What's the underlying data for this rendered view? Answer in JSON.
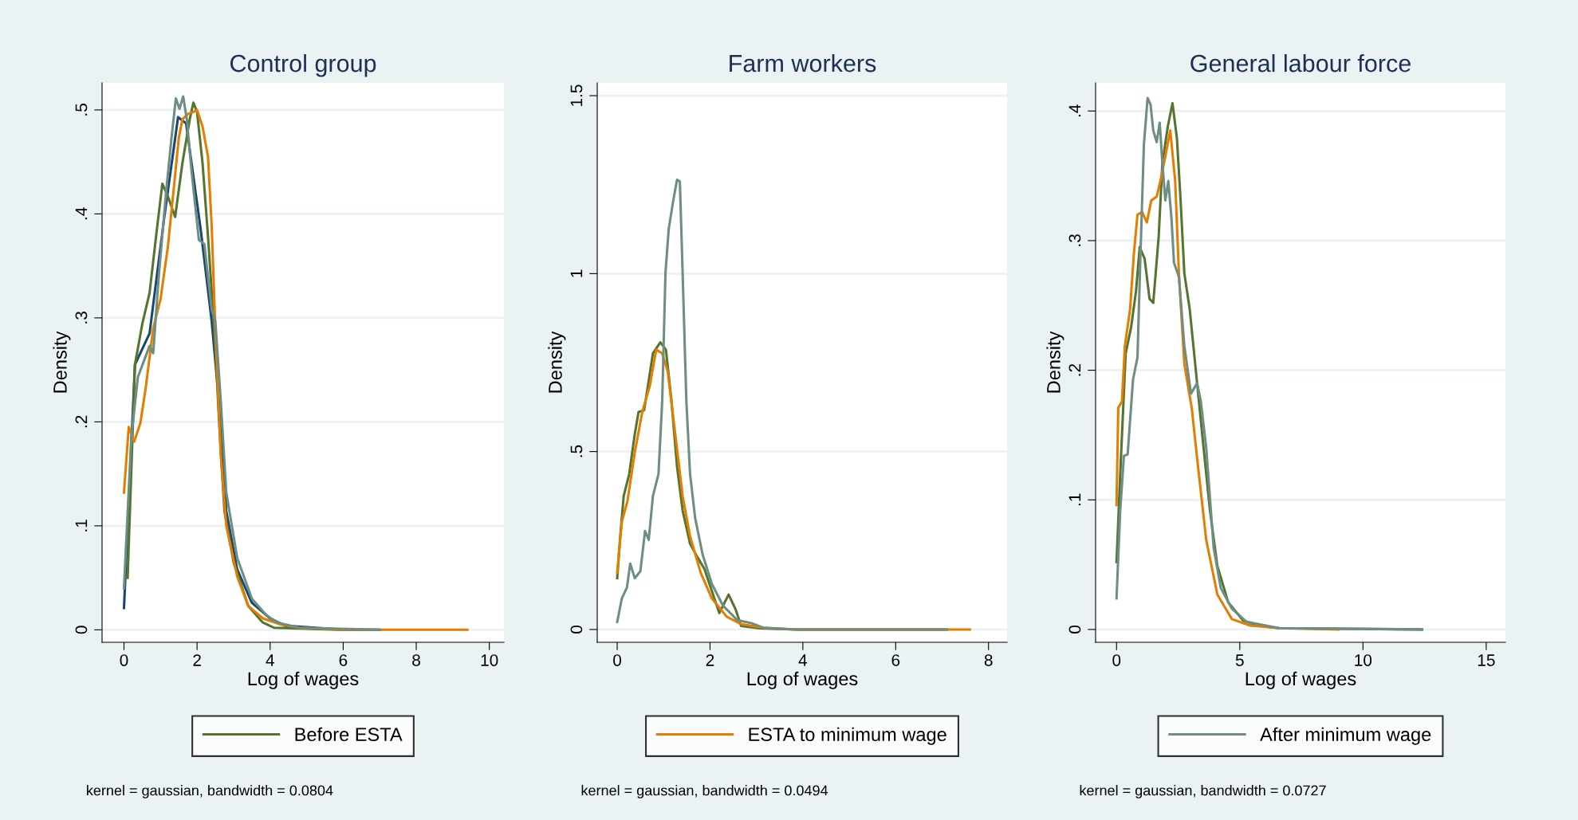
{
  "chart_data": [
    {
      "type": "line",
      "title": "Control group",
      "xlabel": "Log of wages",
      "ylabel": "Density",
      "xlim": [
        -0.6,
        10.4
      ],
      "ylim": [
        -0.012,
        0.526
      ],
      "xticks": [
        0,
        2,
        4,
        6,
        8,
        10
      ],
      "yticks": [
        {
          "value": 0,
          "label": "0"
        },
        {
          "value": 0.1,
          "label": ".1"
        },
        {
          "value": 0.2,
          "label": ".2"
        },
        {
          "value": 0.3,
          "label": ".3"
        },
        {
          "value": 0.4,
          "label": ".4"
        },
        {
          "value": 0.5,
          "label": ".5"
        }
      ],
      "grid": "y",
      "legend": "bottom",
      "annotations": [
        "kernel = gaussian, bandwidth = 0.0804"
      ],
      "series": [
        {
          "color": "#1a476f",
          "x": [
            0,
            0.3,
            0.7,
            1.1,
            1.48,
            1.7,
            2.1,
            2.4,
            2.6,
            2.8,
            3.1,
            3.5,
            4.0,
            4.4,
            6.0,
            7.0
          ],
          "values": [
            0.021,
            0.255,
            0.285,
            0.396,
            0.493,
            0.487,
            0.385,
            0.297,
            0.22,
            0.114,
            0.058,
            0.026,
            0.011,
            0.004,
            0,
            0
          ]
        },
        {
          "name": "Before ESTA",
          "color": "#55752f",
          "x": [
            0.1,
            0.3,
            0.5,
            0.7,
            0.9,
            1.05,
            1.2,
            1.4,
            1.6,
            1.8,
            1.9,
            2.0,
            2.15,
            2.3,
            2.5,
            2.6,
            2.75,
            3.0,
            3.4,
            3.8,
            4.1,
            6.0
          ],
          "values": [
            0.05,
            0.255,
            0.294,
            0.324,
            0.385,
            0.429,
            0.417,
            0.397,
            0.449,
            0.491,
            0.507,
            0.498,
            0.449,
            0.378,
            0.273,
            0.202,
            0.114,
            0.065,
            0.023,
            0.007,
            0.002,
            0
          ]
        },
        {
          "color": "#e37e00",
          "x": [
            0,
            0.13,
            0.28,
            0.45,
            0.6,
            0.8,
            1.0,
            1.2,
            1.35,
            1.5,
            1.6,
            1.75,
            1.9,
            2.0,
            2.15,
            2.3,
            2.4,
            2.5,
            2.65,
            2.8,
            3.1,
            3.4,
            3.8,
            4.3,
            4.8,
            6.0,
            9.4
          ],
          "values": [
            0.132,
            0.195,
            0.181,
            0.199,
            0.234,
            0.29,
            0.318,
            0.368,
            0.42,
            0.473,
            0.491,
            0.496,
            0.498,
            0.5,
            0.484,
            0.455,
            0.389,
            0.29,
            0.167,
            0.1,
            0.051,
            0.023,
            0.011,
            0.005,
            0.002,
            0,
            0
          ]
        },
        {
          "color": "#6e8e84",
          "x": [
            0,
            0.2,
            0.38,
            0.55,
            0.7,
            0.8,
            0.95,
            1.15,
            1.3,
            1.42,
            1.52,
            1.62,
            1.72,
            1.85,
            2.05,
            2.2,
            2.4,
            2.5,
            2.65,
            2.8,
            3.1,
            3.5,
            3.9,
            4.2,
            4.8,
            7.0
          ],
          "values": [
            0.04,
            0.185,
            0.243,
            0.259,
            0.273,
            0.266,
            0.339,
            0.42,
            0.473,
            0.511,
            0.501,
            0.513,
            0.491,
            0.441,
            0.375,
            0.371,
            0.308,
            0.297,
            0.22,
            0.132,
            0.069,
            0.03,
            0.014,
            0.007,
            0.002,
            0
          ]
        }
      ]
    },
    {
      "type": "line",
      "title": "Farm workers",
      "xlabel": "Log of wages",
      "ylabel": "Density",
      "xlim": [
        -0.43,
        8.4
      ],
      "ylim": [
        -0.036,
        1.536
      ],
      "xticks": [
        0,
        2,
        4,
        6,
        8
      ],
      "yticks": [
        {
          "value": 0,
          "label": "0"
        },
        {
          "value": 0.5,
          "label": ".5"
        },
        {
          "value": 1,
          "label": "1"
        },
        {
          "value": 1.5,
          "label": "1.5"
        }
      ],
      "grid": "y",
      "legend": "bottom",
      "annotations": [
        "kernel = gaussian, bandwidth = 0.0494"
      ],
      "series": [
        {
          "color": "#55752f",
          "x": [
            0,
            0.06,
            0.14,
            0.26,
            0.38,
            0.46,
            0.58,
            0.66,
            0.77,
            0.93,
            1.05,
            1.17,
            1.29,
            1.41,
            1.57,
            1.72,
            1.88,
            2.04,
            2.2,
            2.4,
            2.55,
            2.67,
            3.07,
            3.86,
            7.1
          ],
          "values": [
            0.144,
            0.252,
            0.375,
            0.437,
            0.55,
            0.611,
            0.616,
            0.683,
            0.776,
            0.807,
            0.786,
            0.642,
            0.457,
            0.334,
            0.241,
            0.205,
            0.17,
            0.108,
            0.046,
            0.098,
            0.057,
            0.01,
            0.003,
            0,
            0
          ]
        },
        {
          "name": "ESTA to minimum wage",
          "color": "#e37e00",
          "x": [
            0,
            0.1,
            0.22,
            0.38,
            0.54,
            0.7,
            0.84,
            0.97,
            1.09,
            1.25,
            1.41,
            1.57,
            1.8,
            2.04,
            2.36,
            2.67,
            3.15,
            3.86,
            7.6
          ],
          "values": [
            0.159,
            0.303,
            0.36,
            0.498,
            0.611,
            0.683,
            0.786,
            0.776,
            0.724,
            0.55,
            0.375,
            0.262,
            0.159,
            0.087,
            0.036,
            0.015,
            0.005,
            0,
            0
          ]
        },
        {
          "color": "#6e8e84",
          "x": [
            0,
            0.1,
            0.21,
            0.28,
            0.38,
            0.5,
            0.6,
            0.68,
            0.77,
            0.89,
            0.97,
            1.04,
            1.11,
            1.21,
            1.29,
            1.35,
            1.41,
            1.49,
            1.57,
            1.68,
            1.84,
            2.04,
            2.28,
            2.59,
            2.91,
            3.15,
            3.86,
            7.1
          ],
          "values": [
            0.021,
            0.087,
            0.118,
            0.185,
            0.144,
            0.164,
            0.277,
            0.252,
            0.375,
            0.437,
            0.642,
            1.002,
            1.125,
            1.207,
            1.264,
            1.259,
            1.002,
            0.642,
            0.437,
            0.313,
            0.211,
            0.128,
            0.067,
            0.026,
            0.017,
            0.005,
            0,
            0
          ]
        }
      ]
    },
    {
      "type": "line",
      "title": "General labour force",
      "xlabel": "Log of wages",
      "ylabel": "Density",
      "xlim": [
        -0.85,
        15.78
      ],
      "ylim": [
        -0.0099,
        0.4217
      ],
      "xticks": [
        0,
        5,
        10,
        15
      ],
      "yticks": [
        {
          "value": 0,
          "label": "0"
        },
        {
          "value": 0.1,
          "label": ".1"
        },
        {
          "value": 0.2,
          "label": ".2"
        },
        {
          "value": 0.3,
          "label": ".3"
        },
        {
          "value": 0.4,
          "label": ".4"
        }
      ],
      "grid": "y",
      "legend": "bottom",
      "annotations": [
        "kernel = gaussian, bandwidth = 0.0727"
      ],
      "series": [
        {
          "color": "#55752f",
          "x": [
            0,
            0.15,
            0.37,
            0.59,
            0.79,
            0.94,
            1.14,
            1.34,
            1.49,
            1.71,
            1.86,
            2.08,
            2.27,
            2.45,
            2.6,
            2.75,
            2.97,
            3.19,
            3.49,
            3.79,
            4.09,
            4.53,
            5.13,
            5.72,
            6.6,
            12.4
          ],
          "values": [
            0.052,
            0.12,
            0.213,
            0.233,
            0.261,
            0.295,
            0.286,
            0.255,
            0.252,
            0.303,
            0.36,
            0.388,
            0.406,
            0.379,
            0.331,
            0.275,
            0.247,
            0.205,
            0.148,
            0.092,
            0.049,
            0.021,
            0.007,
            0.003,
            0.001,
            0
          ]
        },
        {
          "color": "#e37e00",
          "x": [
            0,
            0.07,
            0.22,
            0.34,
            0.55,
            0.7,
            0.85,
            1.04,
            1.23,
            1.41,
            1.63,
            1.78,
            2.01,
            2.18,
            2.38,
            2.53,
            2.75,
            3.05,
            3.34,
            3.64,
            4.09,
            4.68,
            5.42,
            6.6,
            9.0
          ],
          "values": [
            0.096,
            0.171,
            0.176,
            0.219,
            0.247,
            0.289,
            0.32,
            0.322,
            0.314,
            0.331,
            0.334,
            0.346,
            0.368,
            0.385,
            0.346,
            0.275,
            0.205,
            0.171,
            0.12,
            0.069,
            0.027,
            0.008,
            0.003,
            0.001,
            0
          ]
        },
        {
          "name": "After minimum wage",
          "color": "#6e8e84",
          "x": [
            0,
            0.15,
            0.3,
            0.45,
            0.67,
            0.85,
            0.97,
            1.11,
            1.26,
            1.38,
            1.49,
            1.63,
            1.75,
            1.86,
            1.98,
            2.1,
            2.23,
            2.33,
            2.53,
            2.75,
            3.02,
            3.27,
            3.42,
            3.64,
            3.94,
            4.23,
            4.68,
            5.27,
            6.6,
            12.4
          ],
          "values": [
            0.024,
            0.092,
            0.134,
            0.135,
            0.193,
            0.21,
            0.289,
            0.374,
            0.41,
            0.405,
            0.385,
            0.376,
            0.391,
            0.36,
            0.331,
            0.346,
            0.317,
            0.283,
            0.272,
            0.219,
            0.182,
            0.19,
            0.176,
            0.14,
            0.063,
            0.032,
            0.016,
            0.006,
            0.001,
            0
          ]
        }
      ]
    }
  ]
}
